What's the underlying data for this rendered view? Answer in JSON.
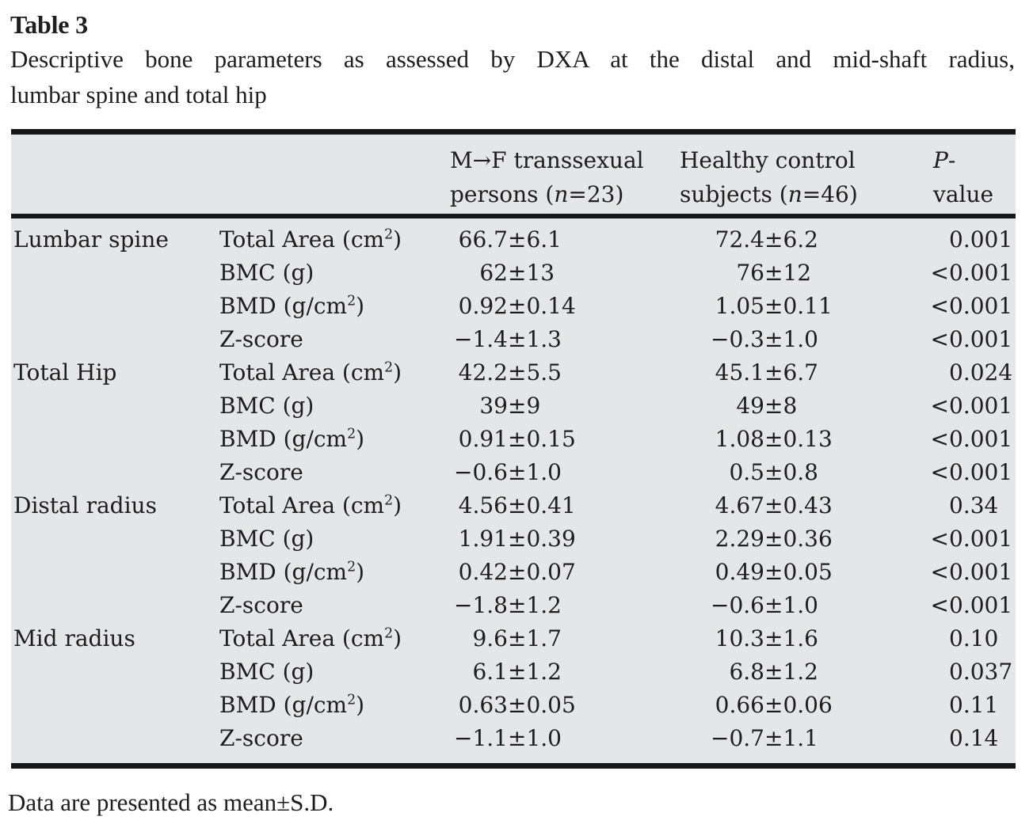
{
  "doc": {
    "title": "Table 3",
    "caption_line1": "Descriptive bone parameters as assessed by DXA at the distal and mid-shaft radius,",
    "caption_line2": "lumbar spine and total hip",
    "footnote": "Data are presented as mean±S.D."
  },
  "table": {
    "headers": {
      "mf": {
        "line1": "M→F transsexual",
        "line2_pre": "persons (",
        "line2_var": "n",
        "line2_post": "=23)"
      },
      "hc": {
        "line1": "Healthy control",
        "line2_pre": "subjects (",
        "line2_var": "n",
        "line2_post": "=46)"
      },
      "p": {
        "italic": "P",
        "rest": "-value"
      }
    },
    "sections": [
      {
        "site": "Lumbar spine",
        "rows": [
          {
            "param": "Total Area (cm²)",
            "mf": "66.7±6.1",
            "hc": "72.4±6.2",
            "p": "0.001"
          },
          {
            "param": "BMC (g)",
            "mf": "62±13",
            "hc": "76±12",
            "p": "<0.001"
          },
          {
            "param": "BMD (g/cm²)",
            "mf": "0.92±0.14",
            "hc": "1.05±0.11",
            "p": "<0.001"
          },
          {
            "param": "Z-score",
            "mf": "−1.4±1.3",
            "hc": "−0.3±1.0",
            "p": "<0.001"
          }
        ]
      },
      {
        "site": "Total Hip",
        "rows": [
          {
            "param": "Total Area (cm²)",
            "mf": "42.2±5.5",
            "hc": "45.1±6.7",
            "p": "0.024"
          },
          {
            "param": "BMC (g)",
            "mf": "39±9",
            "hc": "49±8",
            "p": "<0.001"
          },
          {
            "param": "BMD (g/cm²)",
            "mf": "0.91±0.15",
            "hc": "1.08±0.13",
            "p": "<0.001"
          },
          {
            "param": "Z-score",
            "mf": "−0.6±1.0",
            "hc": "0.5±0.8",
            "p": "<0.001"
          }
        ]
      },
      {
        "site": "Distal radius",
        "rows": [
          {
            "param": "Total Area (cm²)",
            "mf": "4.56±0.41",
            "hc": "4.67±0.43",
            "p": "0.34"
          },
          {
            "param": "BMC (g)",
            "mf": "1.91±0.39",
            "hc": "2.29±0.36",
            "p": "<0.001"
          },
          {
            "param": "BMD (g/cm²)",
            "mf": "0.42±0.07",
            "hc": "0.49±0.05",
            "p": "<0.001"
          },
          {
            "param": "Z-score",
            "mf": "−1.8±1.2",
            "hc": "−0.6±1.0",
            "p": "<0.001"
          }
        ]
      },
      {
        "site": "Mid radius",
        "rows": [
          {
            "param": "Total Area (cm²)",
            "mf": "9.6±1.7",
            "hc": "10.3±1.6",
            "p": "0.10"
          },
          {
            "param": "BMC (g)",
            "mf": "6.1±1.2",
            "hc": "6.8±1.2",
            "p": "0.037"
          },
          {
            "param": "BMD (g/cm²)",
            "mf": "0.63±0.05",
            "hc": "0.66±0.06",
            "p": "0.11"
          },
          {
            "param": "Z-score",
            "mf": "−1.1±1.0",
            "hc": "−0.7±1.1",
            "p": "0.14"
          }
        ]
      }
    ],
    "colors": {
      "table_background": "#e5e6e7",
      "rule": "#171717",
      "text": "#1f1d1d"
    }
  }
}
